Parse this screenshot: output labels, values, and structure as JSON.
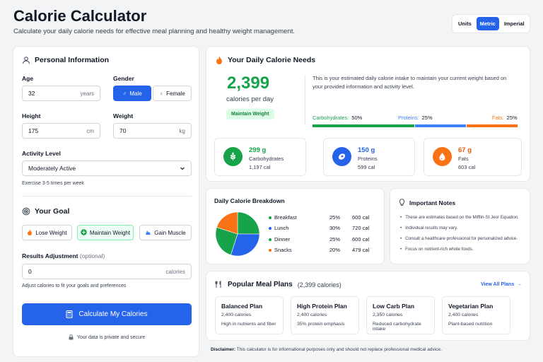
{
  "header": {
    "title": "Calorie Calculator",
    "subtitle": "Calculate your daily calorie needs for effective meal planning and healthy weight management."
  },
  "units": {
    "label": "Units",
    "options": [
      "Metric",
      "Imperial"
    ],
    "selected": "Metric"
  },
  "personal": {
    "heading": "Personal Information",
    "age_label": "Age",
    "age_value": "32",
    "age_unit": "years",
    "gender_label": "Gender",
    "gender_male": "Male",
    "gender_female": "Female",
    "gender_selected": "Male",
    "height_label": "Height",
    "height_value": "175",
    "height_unit": "cm",
    "weight_label": "Weight",
    "weight_value": "70",
    "weight_unit": "kg",
    "activity_label": "Activity Level",
    "activity_value": "Moderately Active",
    "activity_hint": "Exercise 3-5 times per week"
  },
  "goal": {
    "heading": "Your Goal",
    "options": [
      "Lose Weight",
      "Maintain Weight",
      "Gain Muscle"
    ],
    "selected": "Maintain Weight",
    "adjust_label": "Results Adjustment",
    "adjust_optional": "(optional)",
    "adjust_value": "0",
    "adjust_unit": "calories",
    "adjust_hint": "Adjust calories to fit your goals and preferences"
  },
  "calculate_button": "Calculate My Calories",
  "privacy_note": "Your data is private and secure",
  "needs": {
    "heading": "Your Daily Calorie Needs",
    "calories": "2,399",
    "calories_unit": "calories per day",
    "status": "Maintain Weight",
    "description": "This is your estimated daily calorie intake to maintain your current weight based on your provided information and activity level.",
    "macros_split": [
      {
        "label": "Carbohydrates:",
        "pct": "50%",
        "fraction": 0.5,
        "color": "#16a34a"
      },
      {
        "label": "Proteins:",
        "pct": "25%",
        "fraction": 0.25,
        "color": "#3b82f6"
      },
      {
        "label": "Fats:",
        "pct": "25%",
        "fraction": 0.25,
        "color": "#f97316"
      }
    ],
    "macro_cards": [
      {
        "value": "299 g",
        "name": "Carbohydrates",
        "cal": "1,197 cal",
        "color": "#16a34a",
        "bg": "#16a34a",
        "icon": "wheat-icon"
      },
      {
        "value": "150 g",
        "name": "Proteins",
        "cal": "599 cal",
        "color": "#2563eb",
        "bg": "#2563eb",
        "icon": "egg-icon"
      },
      {
        "value": "67 g",
        "name": "Fats",
        "cal": "603 cal",
        "color": "#ea580c",
        "bg": "#f97316",
        "icon": "drop-icon"
      }
    ]
  },
  "breakdown": {
    "title": "Daily Calorie Breakdown",
    "rows": [
      {
        "meal": "Breakfast",
        "pct": "25%",
        "cal": "600 cal",
        "color": "#16a34a"
      },
      {
        "meal": "Lunch",
        "pct": "30%",
        "cal": "720 cal",
        "color": "#2563eb"
      },
      {
        "meal": "Dinner",
        "pct": "25%",
        "cal": "600 cal",
        "color": "#16a34a"
      },
      {
        "meal": "Snacks",
        "pct": "20%",
        "cal": "479 cal",
        "color": "#f97316"
      }
    ]
  },
  "chart_data": {
    "type": "pie",
    "categories": [
      "Breakfast",
      "Lunch",
      "Dinner",
      "Snacks"
    ],
    "values": [
      25,
      30,
      25,
      20
    ],
    "colors": [
      "#16a34a",
      "#2563eb",
      "#16a34a",
      "#f97316"
    ],
    "title": "Daily Calorie Breakdown"
  },
  "notes": {
    "title": "Important Notes",
    "items": [
      "These are estimates based on the Mifflin-St Jeor Equation.",
      "Individual results may vary.",
      "Consult a healthcare professional for personalized advice.",
      "Focus on nutrient-rich whole foods."
    ]
  },
  "meal_plans": {
    "title": "Popular Meal Plans",
    "subtitle": "(2,399 calories)",
    "view_all": "View All Plans",
    "plans": [
      {
        "name": "Balanced Plan",
        "cal": "2,400 calories",
        "desc": "High in nutrients and fiber"
      },
      {
        "name": "High Protein Plan",
        "cal": "2,400 calories",
        "desc": "35% protein emphasis"
      },
      {
        "name": "Low Carb Plan",
        "cal": "2,350 calories",
        "desc": "Reduced carbohydrate intake"
      },
      {
        "name": "Vegetarian Plan",
        "cal": "2,400 calories",
        "desc": "Plant-based nutrition"
      }
    ]
  },
  "disclaimer": {
    "label": "Disclaimer:",
    "text": "This calculator is for informational purposes only and should not replace professional medical advice."
  }
}
